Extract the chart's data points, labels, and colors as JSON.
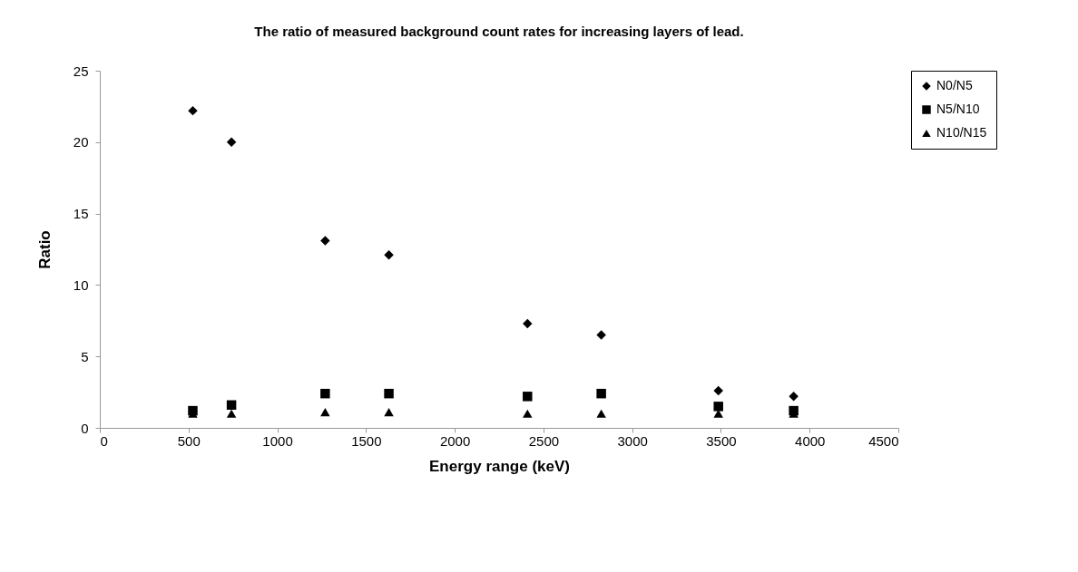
{
  "chart_data": {
    "type": "scatter",
    "title": "The ratio of measured background count rates for increasing layers of lead.",
    "xlabel": "Energy range (keV)",
    "ylabel": "Ratio",
    "x": [
      524,
      742,
      1270,
      1629,
      2410,
      2826,
      3486,
      3910
    ],
    "series": [
      {
        "name": "N0/N5",
        "color": "#000000",
        "marker": "diamond",
        "values": [
          22.2,
          20.0,
          13.1,
          12.1,
          7.3,
          6.5,
          2.6,
          2.2
        ]
      },
      {
        "name": "N5/N10",
        "color": "#000000",
        "marker": "square",
        "values": [
          1.2,
          1.6,
          2.4,
          2.4,
          2.2,
          2.4,
          1.5,
          1.2
        ]
      },
      {
        "name": "N10/N15",
        "color": "#000000",
        "marker": "triangle",
        "values": [
          1.0,
          1.0,
          1.1,
          1.1,
          1.0,
          1.0,
          1.0,
          1.0
        ]
      }
    ],
    "xlim": [
      0,
      4500
    ],
    "xticks": [
      0,
      500,
      1000,
      1500,
      2000,
      2500,
      3000,
      3500,
      4000,
      4500
    ],
    "ylim": [
      0,
      25
    ],
    "yticks": [
      0,
      5,
      10,
      15,
      20,
      25
    ],
    "grid": false,
    "legend": "right"
  }
}
